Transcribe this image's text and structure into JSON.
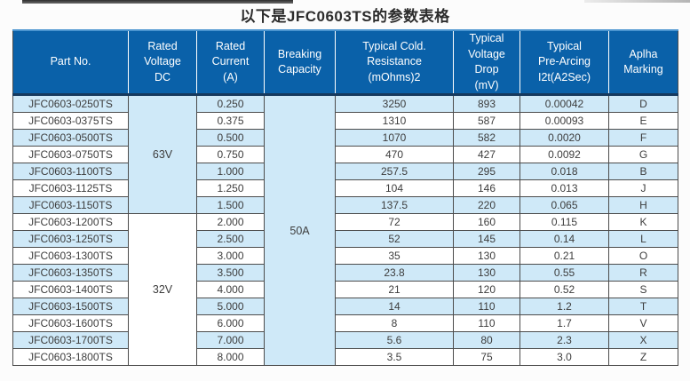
{
  "title": "以下是JFC0603TS的参数表格",
  "colors": {
    "header_bg": "#0a61a9",
    "header_top": "#4a94cf",
    "header_bottom": "#16395e",
    "header_text": "#ffffff",
    "row_blue": "#cfe9f8",
    "grid": "#4c4c4c",
    "body_text": "#3d3d3d"
  },
  "table": {
    "columns": [
      {
        "id": "part-no",
        "label": "Part No."
      },
      {
        "id": "rated-voltage",
        "label": "Rated\nVoltage\nDC"
      },
      {
        "id": "rated-current",
        "label": "Rated\nCurrent\n(A)"
      },
      {
        "id": "breaking-capacity",
        "label": "Breaking\nCapacity"
      },
      {
        "id": "cold-resistance",
        "label": "Typical Cold.\nResistance\n(mOhms)2"
      },
      {
        "id": "voltage-drop",
        "label": "Typical\nVoltage Drop\n(mV)"
      },
      {
        "id": "pre-arcing",
        "label": "Typical\nPre-Arcing\nI2t(A2Sec)"
      },
      {
        "id": "alpha-marking",
        "label": "Aplha\nMarking"
      }
    ],
    "voltage_groups": [
      {
        "label": "63V",
        "rows": 7
      },
      {
        "label": "32V",
        "rows": 9
      }
    ],
    "breaking_capacity": {
      "label": "50A",
      "rows": 16
    },
    "rows": [
      {
        "part_no": "JFC0603-0250TS",
        "rated_current_a": "0.250",
        "cold_resistance_mohms": "3250",
        "voltage_drop_mv": "893",
        "pre_arcing_i2t": "0.00042",
        "alpha_marking": "D"
      },
      {
        "part_no": "JFC0603-0375TS",
        "rated_current_a": "0.375",
        "cold_resistance_mohms": "1310",
        "voltage_drop_mv": "587",
        "pre_arcing_i2t": "0.00093",
        "alpha_marking": "E"
      },
      {
        "part_no": "JFC0603-0500TS",
        "rated_current_a": "0.500",
        "cold_resistance_mohms": "1070",
        "voltage_drop_mv": "582",
        "pre_arcing_i2t": "0.0020",
        "alpha_marking": "F"
      },
      {
        "part_no": "JFC0603-0750TS",
        "rated_current_a": "0.750",
        "cold_resistance_mohms": "470",
        "voltage_drop_mv": "427",
        "pre_arcing_i2t": "0.0092",
        "alpha_marking": "G"
      },
      {
        "part_no": "JFC0603-1100TS",
        "rated_current_a": "1.000",
        "cold_resistance_mohms": "257.5",
        "voltage_drop_mv": "295",
        "pre_arcing_i2t": "0.018",
        "alpha_marking": "B"
      },
      {
        "part_no": "JFC0603-1125TS",
        "rated_current_a": "1.250",
        "cold_resistance_mohms": "104",
        "voltage_drop_mv": "146",
        "pre_arcing_i2t": "0.013",
        "alpha_marking": "J"
      },
      {
        "part_no": "JFC0603-1150TS",
        "rated_current_a": "1.500",
        "cold_resistance_mohms": "137.5",
        "voltage_drop_mv": "220",
        "pre_arcing_i2t": "0.065",
        "alpha_marking": "H"
      },
      {
        "part_no": "JFC0603-1200TS",
        "rated_current_a": "2.000",
        "cold_resistance_mohms": "72",
        "voltage_drop_mv": "160",
        "pre_arcing_i2t": "0.115",
        "alpha_marking": "K"
      },
      {
        "part_no": "JFC0603-1250TS",
        "rated_current_a": "2.500",
        "cold_resistance_mohms": "52",
        "voltage_drop_mv": "145",
        "pre_arcing_i2t": "0.14",
        "alpha_marking": "L"
      },
      {
        "part_no": "JFC0603-1300TS",
        "rated_current_a": "3.000",
        "cold_resistance_mohms": "35",
        "voltage_drop_mv": "130",
        "pre_arcing_i2t": "0.21",
        "alpha_marking": "O"
      },
      {
        "part_no": "JFC0603-1350TS",
        "rated_current_a": "3.500",
        "cold_resistance_mohms": "23.8",
        "voltage_drop_mv": "130",
        "pre_arcing_i2t": "0.55",
        "alpha_marking": "R"
      },
      {
        "part_no": "JFC0603-1400TS",
        "rated_current_a": "4.000",
        "cold_resistance_mohms": "21",
        "voltage_drop_mv": "120",
        "pre_arcing_i2t": "0.52",
        "alpha_marking": "S"
      },
      {
        "part_no": "JFC0603-1500TS",
        "rated_current_a": "5.000",
        "cold_resistance_mohms": "14",
        "voltage_drop_mv": "110",
        "pre_arcing_i2t": "1.2",
        "alpha_marking": "T"
      },
      {
        "part_no": "JFC0603-1600TS",
        "rated_current_a": "6.000",
        "cold_resistance_mohms": "8",
        "voltage_drop_mv": "110",
        "pre_arcing_i2t": "1.7",
        "alpha_marking": "V"
      },
      {
        "part_no": "JFC0603-1700TS",
        "rated_current_a": "7.000",
        "cold_resistance_mohms": "5.6",
        "voltage_drop_mv": "80",
        "pre_arcing_i2t": "2.3",
        "alpha_marking": "X"
      },
      {
        "part_no": "JFC0603-1800TS",
        "rated_current_a": "8.000",
        "cold_resistance_mohms": "3.5",
        "voltage_drop_mv": "75",
        "pre_arcing_i2t": "3.0",
        "alpha_marking": "Z"
      }
    ]
  }
}
